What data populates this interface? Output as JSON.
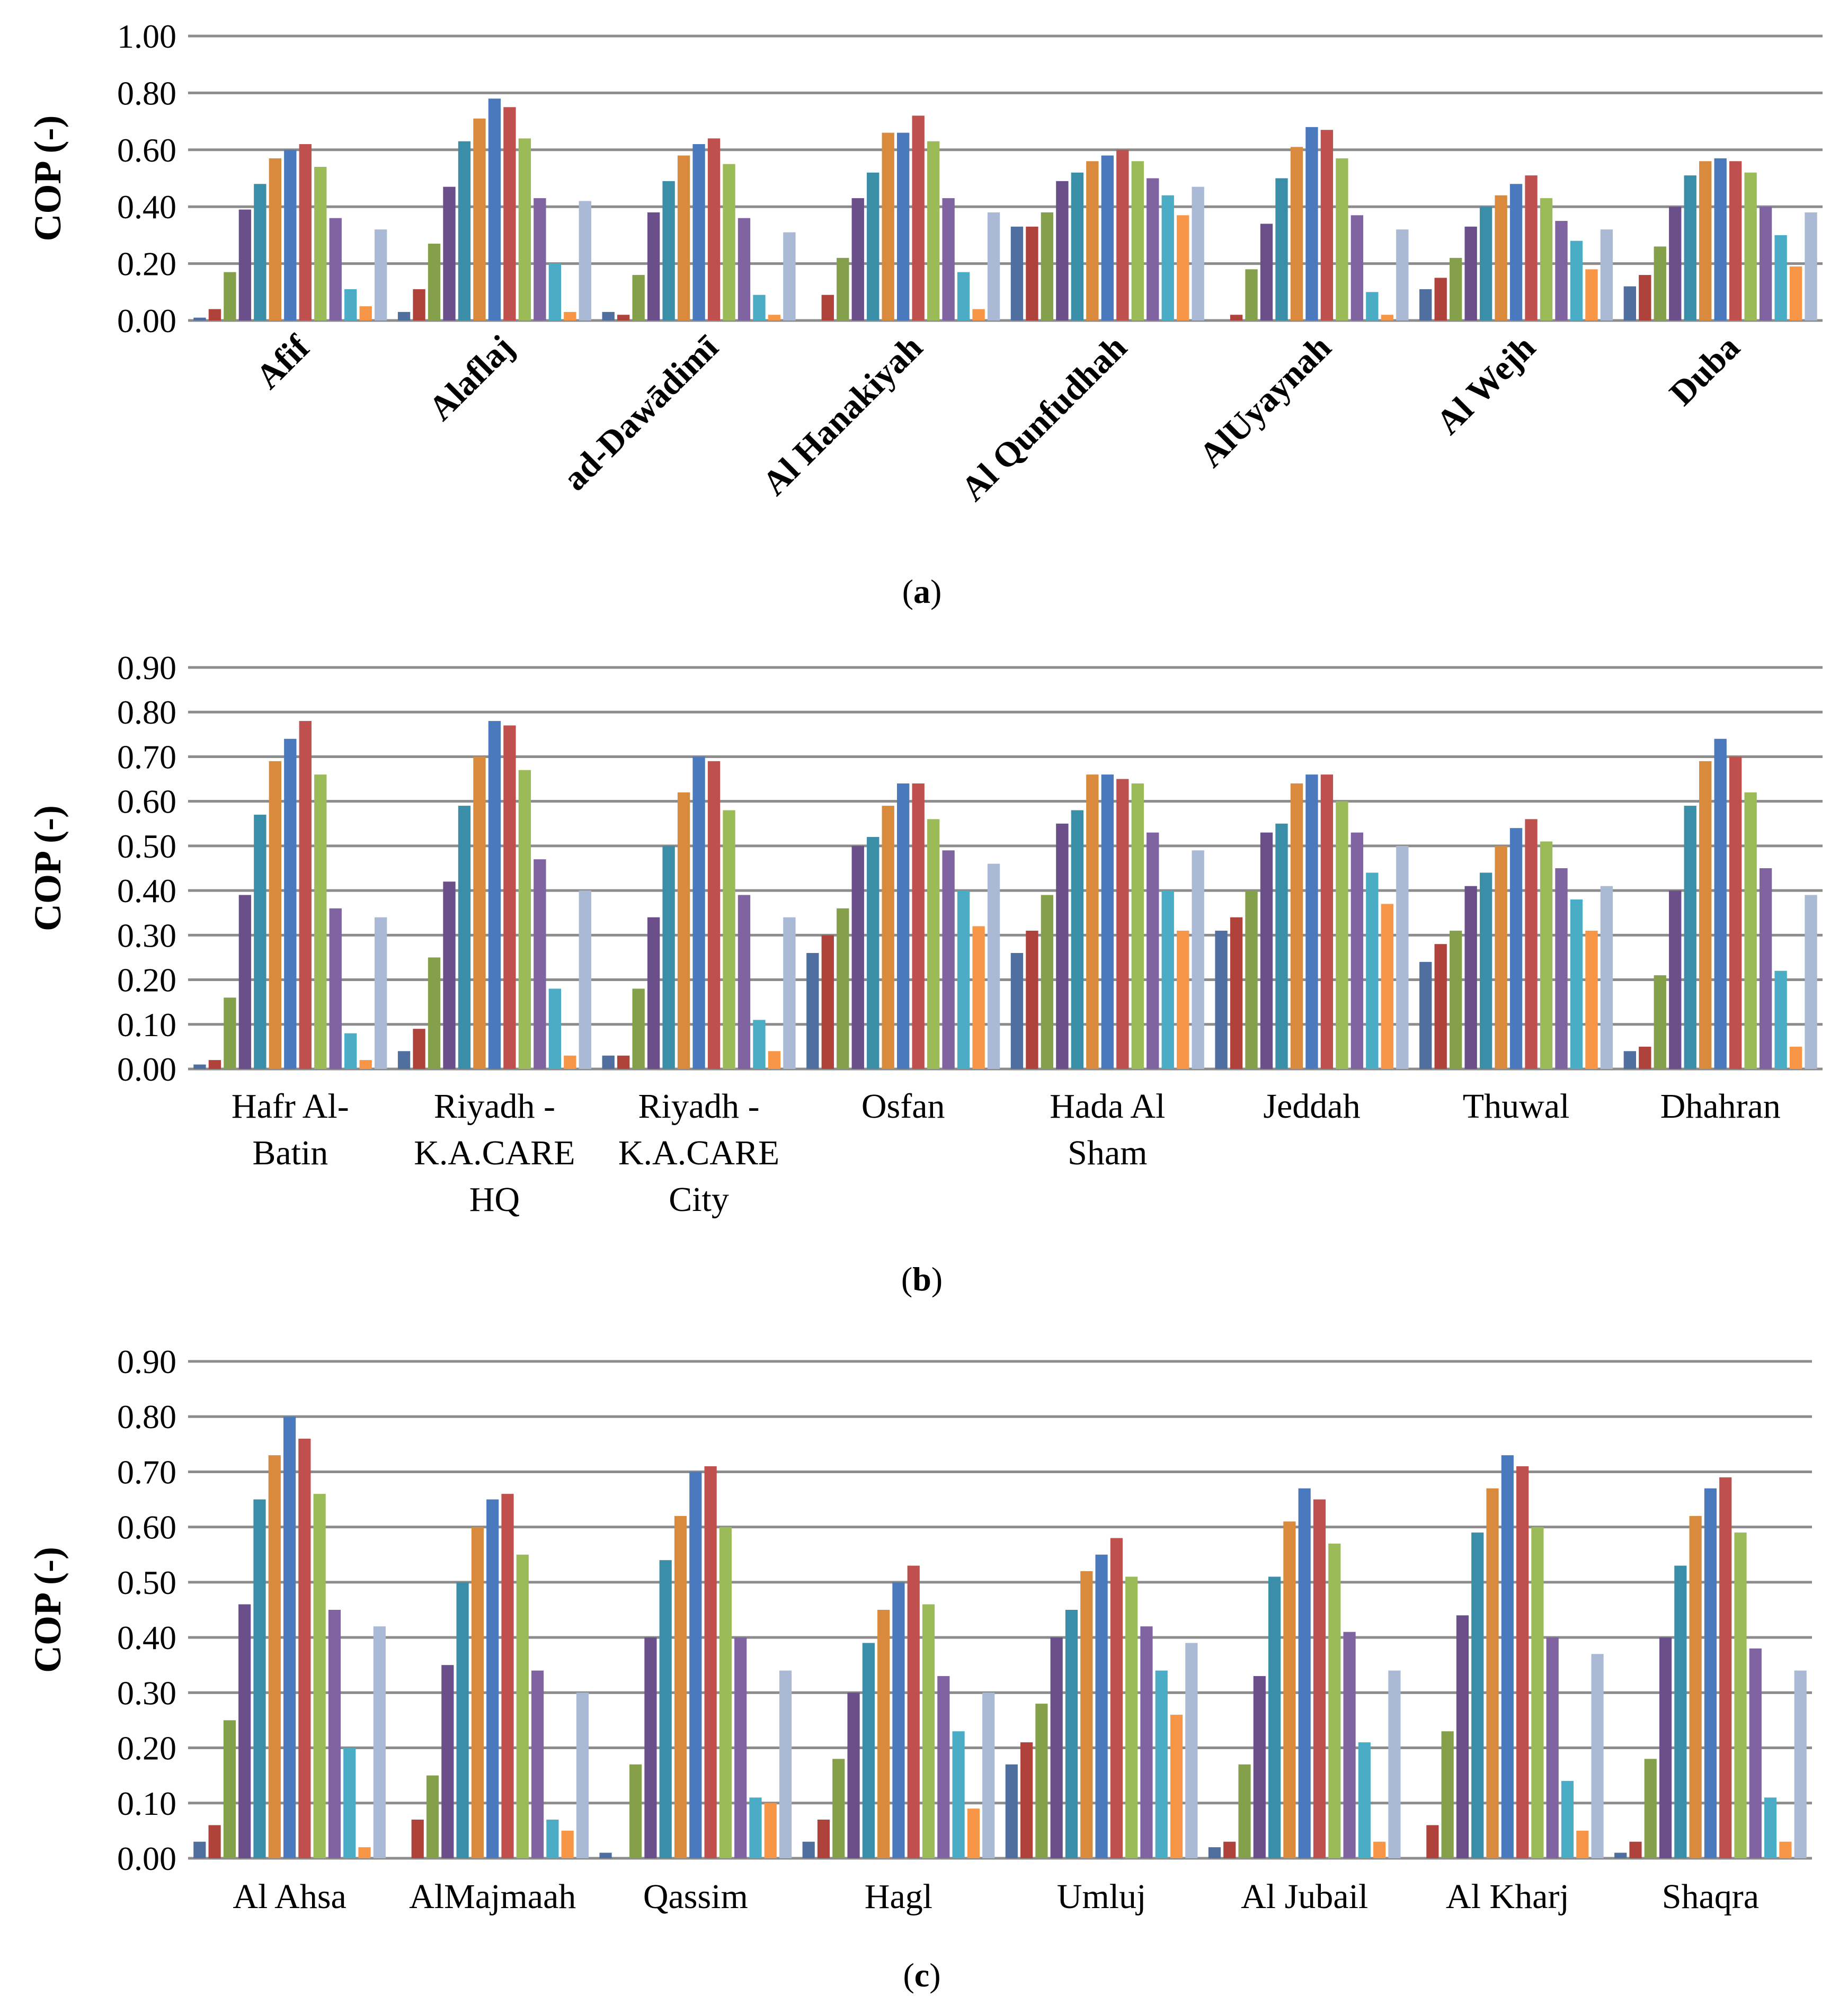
{
  "colors": [
    "#4F6FA0",
    "#B0423C",
    "#84A04A",
    "#6A4F8A",
    "#3A8EA8",
    "#D98A3C",
    "#4A79BE",
    "#C0504D",
    "#9BBB59",
    "#8064A2",
    "#4BACC6",
    "#F79646",
    "#A9B9D6"
  ],
  "chart_data": [
    {
      "type": "bar",
      "panel": "a",
      "caption_letter": "a",
      "ylabel": "COP (-)",
      "ylim": [
        0,
        1.0
      ],
      "yticks": [
        "0.00",
        "0.20",
        "0.40",
        "0.60",
        "0.80",
        "1.00"
      ],
      "grid": true,
      "categories": [
        [
          "Afif"
        ],
        [
          "Alaflaj"
        ],
        [
          "ad-Dawādimī"
        ],
        [
          "Al Hanakiyah"
        ],
        [
          "Al Qunfudhah"
        ],
        [
          "AlUyaynah"
        ],
        [
          "Al Wejh"
        ],
        [
          "Duba"
        ]
      ],
      "values": [
        [
          0.01,
          0.04,
          0.17,
          0.39,
          0.48,
          0.57,
          0.6,
          0.62,
          0.54,
          0.36,
          0.11,
          0.05,
          0.32
        ],
        [
          0.03,
          0.11,
          0.27,
          0.47,
          0.63,
          0.71,
          0.78,
          0.75,
          0.64,
          0.43,
          0.2,
          0.03,
          0.42
        ],
        [
          0.03,
          0.02,
          0.16,
          0.38,
          0.49,
          0.58,
          0.62,
          0.64,
          0.55,
          0.36,
          0.09,
          0.02,
          0.31
        ],
        [
          0.0,
          0.09,
          0.22,
          0.43,
          0.52,
          0.66,
          0.66,
          0.72,
          0.63,
          0.43,
          0.17,
          0.04,
          0.38
        ],
        [
          0.33,
          0.33,
          0.38,
          0.49,
          0.52,
          0.56,
          0.58,
          0.6,
          0.56,
          0.5,
          0.44,
          0.37,
          0.47
        ],
        [
          0.0,
          0.02,
          0.18,
          0.34,
          0.5,
          0.61,
          0.68,
          0.67,
          0.57,
          0.37,
          0.1,
          0.02,
          0.32
        ],
        [
          0.11,
          0.15,
          0.22,
          0.33,
          0.4,
          0.44,
          0.48,
          0.51,
          0.43,
          0.35,
          0.28,
          0.18,
          0.32
        ],
        [
          0.12,
          0.16,
          0.26,
          0.4,
          0.51,
          0.56,
          0.57,
          0.56,
          0.52,
          0.4,
          0.3,
          0.19,
          0.38
        ]
      ]
    },
    {
      "type": "bar",
      "panel": "b",
      "caption_letter": "b",
      "ylabel": "COP (-)",
      "ylim": [
        0,
        0.9
      ],
      "yticks": [
        "0.00",
        "0.10",
        "0.20",
        "0.30",
        "0.40",
        "0.50",
        "0.60",
        "0.70",
        "0.80",
        "0.90"
      ],
      "grid": true,
      "categories": [
        [
          "Hafr Al-",
          "Batin"
        ],
        [
          "Riyadh -",
          "K.A.CARE",
          "HQ"
        ],
        [
          "Riyadh -",
          "K.A.CARE",
          "City"
        ],
        [
          "Osfan"
        ],
        [
          "Hada Al",
          "Sham"
        ],
        [
          "Jeddah"
        ],
        [
          "Thuwal"
        ],
        [
          "Dhahran"
        ]
      ],
      "values": [
        [
          0.01,
          0.02,
          0.16,
          0.39,
          0.57,
          0.69,
          0.74,
          0.78,
          0.66,
          0.36,
          0.08,
          0.02,
          0.34
        ],
        [
          0.04,
          0.09,
          0.25,
          0.42,
          0.59,
          0.7,
          0.78,
          0.77,
          0.67,
          0.47,
          0.18,
          0.03,
          0.4
        ],
        [
          0.03,
          0.03,
          0.18,
          0.34,
          0.5,
          0.62,
          0.7,
          0.69,
          0.58,
          0.39,
          0.11,
          0.04,
          0.34
        ],
        [
          0.26,
          0.3,
          0.36,
          0.5,
          0.52,
          0.59,
          0.64,
          0.64,
          0.56,
          0.49,
          0.4,
          0.32,
          0.46
        ],
        [
          0.26,
          0.31,
          0.39,
          0.55,
          0.58,
          0.66,
          0.66,
          0.65,
          0.64,
          0.53,
          0.4,
          0.31,
          0.49
        ],
        [
          0.31,
          0.34,
          0.4,
          0.53,
          0.55,
          0.64,
          0.66,
          0.66,
          0.6,
          0.53,
          0.44,
          0.37,
          0.5
        ],
        [
          0.24,
          0.28,
          0.31,
          0.41,
          0.44,
          0.5,
          0.54,
          0.56,
          0.51,
          0.45,
          0.38,
          0.31,
          0.41
        ],
        [
          0.04,
          0.05,
          0.21,
          0.4,
          0.59,
          0.69,
          0.74,
          0.7,
          0.62,
          0.45,
          0.22,
          0.05,
          0.39
        ]
      ]
    },
    {
      "type": "bar",
      "panel": "c",
      "caption_letter": "c",
      "ylabel": "COP (-)",
      "ylim": [
        0,
        0.9
      ],
      "yticks": [
        "0.00",
        "0.10",
        "0.20",
        "0.30",
        "0.40",
        "0.50",
        "0.60",
        "0.70",
        "0.80",
        "0.90"
      ],
      "grid": true,
      "categories": [
        [
          "Al Ahsa"
        ],
        [
          "AlMajmaah"
        ],
        [
          "Qassim"
        ],
        [
          "Hagl"
        ],
        [
          "Umluj"
        ],
        [
          "Al Jubail"
        ],
        [
          "Al Kharj"
        ],
        [
          "Shaqra"
        ]
      ],
      "values": [
        [
          0.03,
          0.06,
          0.25,
          0.46,
          0.65,
          0.73,
          0.8,
          0.76,
          0.66,
          0.45,
          0.2,
          0.02,
          0.42
        ],
        [
          0.0,
          0.07,
          0.15,
          0.35,
          0.5,
          0.6,
          0.65,
          0.66,
          0.55,
          0.34,
          0.07,
          0.05,
          0.3
        ],
        [
          0.01,
          0.0,
          0.17,
          0.4,
          0.54,
          0.62,
          0.7,
          0.71,
          0.6,
          0.4,
          0.11,
          0.1,
          0.34
        ],
        [
          0.03,
          0.07,
          0.18,
          0.3,
          0.39,
          0.45,
          0.5,
          0.53,
          0.46,
          0.33,
          0.23,
          0.09,
          0.3
        ],
        [
          0.17,
          0.21,
          0.28,
          0.4,
          0.45,
          0.52,
          0.55,
          0.58,
          0.51,
          0.42,
          0.34,
          0.26,
          0.39
        ],
        [
          0.02,
          0.03,
          0.17,
          0.33,
          0.51,
          0.61,
          0.67,
          0.65,
          0.57,
          0.41,
          0.21,
          0.03,
          0.34
        ],
        [
          0.0,
          0.06,
          0.23,
          0.44,
          0.59,
          0.67,
          0.73,
          0.71,
          0.6,
          0.4,
          0.14,
          0.05,
          0.37
        ],
        [
          0.01,
          0.03,
          0.18,
          0.4,
          0.53,
          0.62,
          0.67,
          0.69,
          0.59,
          0.38,
          0.11,
          0.03,
          0.34
        ]
      ]
    }
  ]
}
